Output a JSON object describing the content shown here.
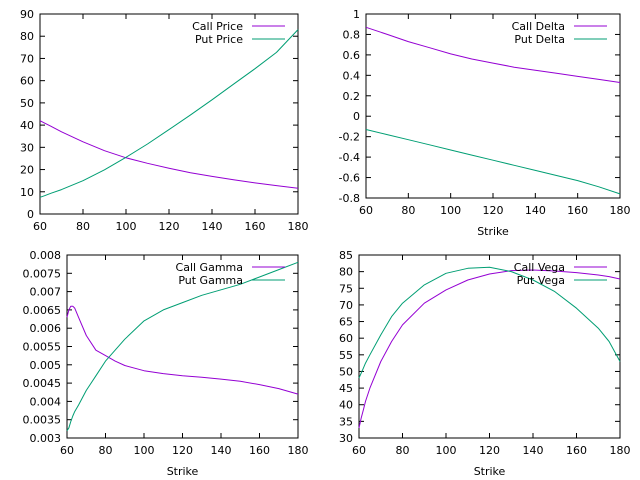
{
  "colors": {
    "call": "#9400d3",
    "put": "#009e73",
    "axis": "#000000",
    "background": "#ffffff"
  },
  "chart_data": [
    {
      "id": "price",
      "type": "line",
      "title": "",
      "xlabel": "",
      "ylabel": "",
      "xlim": [
        60,
        180
      ],
      "ylim": [
        0,
        90
      ],
      "xticks": [
        60,
        80,
        100,
        120,
        140,
        160,
        180
      ],
      "yticks": [
        0,
        10,
        20,
        30,
        40,
        50,
        60,
        70,
        80,
        90
      ],
      "ytick_labels": [
        "0",
        "10",
        "20",
        "30",
        "40",
        "50",
        "60",
        "70",
        "80",
        "90"
      ],
      "legend_position": "top-right",
      "x": [
        60,
        62,
        65,
        70,
        80,
        90,
        100,
        110,
        120,
        130,
        140,
        150,
        160,
        170,
        180
      ],
      "series": [
        {
          "name": "Call Price",
          "color_key": "call",
          "values": [
            42.0,
            41.0,
            39.5,
            37.0,
            32.5,
            28.5,
            25.3,
            22.8,
            20.6,
            18.6,
            16.9,
            15.4,
            14.0,
            12.8,
            11.6
          ]
        },
        {
          "name": "Put Price",
          "color_key": "put",
          "values": [
            7.5,
            8.2,
            9.3,
            11.0,
            15.0,
            19.9,
            25.5,
            31.5,
            38.0,
            44.6,
            51.4,
            58.4,
            65.4,
            72.7,
            83.0
          ]
        }
      ]
    },
    {
      "id": "delta",
      "type": "line",
      "title": "",
      "xlabel": "Strike",
      "ylabel": "",
      "xlim": [
        60,
        180
      ],
      "ylim": [
        -0.8,
        1
      ],
      "xticks": [
        60,
        80,
        100,
        120,
        140,
        160,
        180
      ],
      "yticks": [
        -0.8,
        -0.6,
        -0.4,
        -0.2,
        0,
        0.2,
        0.4,
        0.6,
        0.8,
        1
      ],
      "ytick_labels": [
        "-0.8",
        "-0.6",
        "-0.4",
        "-0.2",
        "0",
        "0.2",
        "0.4",
        "0.6",
        "0.8",
        "1"
      ],
      "legend_position": "top-right",
      "x": [
        60,
        70,
        80,
        90,
        100,
        110,
        120,
        130,
        140,
        150,
        160,
        170,
        180
      ],
      "series": [
        {
          "name": "Call Delta",
          "color_key": "call",
          "values": [
            0.87,
            0.8,
            0.73,
            0.67,
            0.61,
            0.56,
            0.52,
            0.48,
            0.45,
            0.42,
            0.39,
            0.36,
            0.33
          ]
        },
        {
          "name": "Put Delta",
          "color_key": "put",
          "values": [
            -0.13,
            -0.18,
            -0.23,
            -0.28,
            -0.33,
            -0.38,
            -0.43,
            -0.48,
            -0.53,
            -0.58,
            -0.63,
            -0.69,
            -0.76
          ]
        }
      ]
    },
    {
      "id": "gamma",
      "type": "line",
      "title": "",
      "xlabel": "Strike",
      "ylabel": "",
      "xlim": [
        60,
        180
      ],
      "ylim": [
        0.003,
        0.008
      ],
      "xticks": [
        60,
        80,
        100,
        120,
        140,
        160,
        180
      ],
      "yticks": [
        0.003,
        0.0035,
        0.004,
        0.0045,
        0.005,
        0.0055,
        0.006,
        0.0065,
        0.007,
        0.0075,
        0.008
      ],
      "ytick_labels": [
        "0.003",
        "0.0035",
        "0.004",
        "0.0045",
        "0.005",
        "0.0055",
        "0.006",
        "0.0065",
        "0.007",
        "0.0075",
        "0.008"
      ],
      "legend_position": "top-right",
      "x": [
        60,
        61,
        62,
        63,
        64,
        66,
        70,
        75,
        80,
        85,
        90,
        100,
        110,
        120,
        130,
        140,
        150,
        160,
        170,
        180
      ],
      "series": [
        {
          "name": "Call Gamma",
          "color_key": "call",
          "values": [
            0.0063,
            0.0065,
            0.0066,
            0.0066,
            0.00655,
            0.0063,
            0.0058,
            0.0054,
            0.00525,
            0.0051,
            0.00498,
            0.00484,
            0.00476,
            0.0047,
            0.00466,
            0.00461,
            0.00455,
            0.00446,
            0.00435,
            0.0042
          ]
        },
        {
          "name": "Put Gamma",
          "color_key": "put",
          "values": [
            0.0032,
            0.00328,
            0.00345,
            0.0036,
            0.00372,
            0.0039,
            0.0043,
            0.0047,
            0.0051,
            0.0054,
            0.0057,
            0.0062,
            0.0065,
            0.0067,
            0.0069,
            0.00705,
            0.0072,
            0.0074,
            0.0076,
            0.0078
          ]
        }
      ]
    },
    {
      "id": "vega",
      "type": "line",
      "title": "",
      "xlabel": "Strike",
      "ylabel": "",
      "xlim": [
        60,
        180
      ],
      "ylim": [
        30,
        85
      ],
      "xticks": [
        60,
        80,
        100,
        120,
        140,
        160,
        180
      ],
      "yticks": [
        30,
        35,
        40,
        45,
        50,
        55,
        60,
        65,
        70,
        75,
        80,
        85
      ],
      "ytick_labels": [
        "30",
        "35",
        "40",
        "45",
        "50",
        "55",
        "60",
        "65",
        "70",
        "75",
        "80",
        "85"
      ],
      "legend_position": "top-right",
      "x": [
        60,
        61,
        62,
        63,
        65,
        70,
        75,
        80,
        90,
        100,
        110,
        120,
        130,
        140,
        150,
        160,
        170,
        175,
        180
      ],
      "series": [
        {
          "name": "Call Vega",
          "color_key": "call",
          "values": [
            33.0,
            36.0,
            38.5,
            41.0,
            45.0,
            53.0,
            59.0,
            64.0,
            70.5,
            74.5,
            77.5,
            79.3,
            80.3,
            80.5,
            80.2,
            79.7,
            79.0,
            78.5,
            77.8
          ]
        },
        {
          "name": "Put Vega",
          "color_key": "put",
          "values": [
            48.0,
            49.5,
            51.0,
            52.5,
            55.0,
            61.0,
            66.5,
            70.5,
            76.0,
            79.5,
            81.0,
            81.3,
            80.0,
            77.5,
            74.0,
            69.0,
            63.0,
            59.0,
            53.0
          ]
        }
      ]
    }
  ]
}
